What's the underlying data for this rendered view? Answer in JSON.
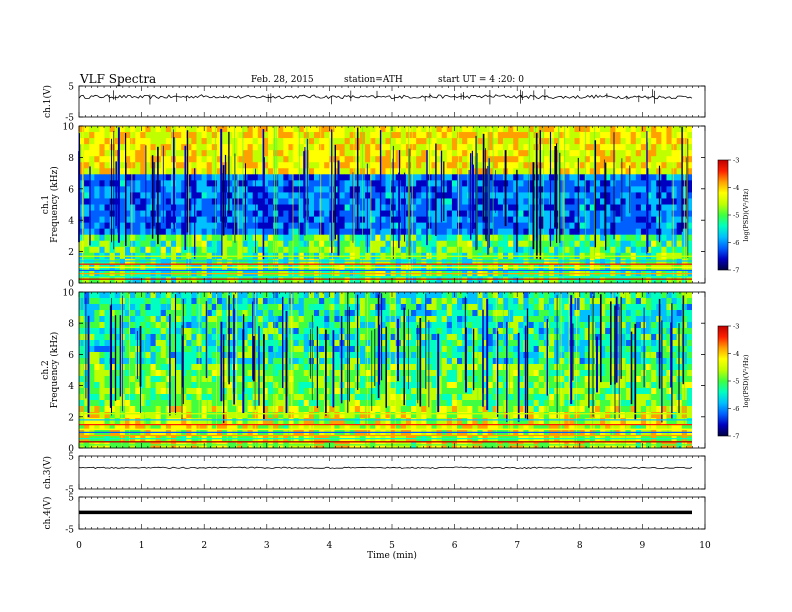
{
  "header": {
    "title": "VLF  Spectra",
    "date": "Feb. 28, 2015",
    "station": "station=ATH",
    "start_ut": "start  UT  =   4  :20: 0"
  },
  "colors": {
    "spectrum_scale": [
      "#000040",
      "#0000c0",
      "#0060ff",
      "#00c0ff",
      "#00ffc0",
      "#40ff40",
      "#c0ff00",
      "#ffff00",
      "#ffa000",
      "#ff2000",
      "#c00000"
    ],
    "trace": "#000000"
  },
  "chart_data": [
    {
      "type": "line",
      "panel": "ch1-waveform",
      "ylabel": "ch.1(V)",
      "ylim": [
        -5,
        5
      ],
      "yticks": [
        "5",
        "-5"
      ],
      "series": [
        {
          "values": [
            1.5,
            1.6,
            1.4,
            1.5,
            1.7,
            1.4,
            1.5,
            1.6,
            1.5,
            1.4,
            1.5,
            1.6,
            1.5,
            1.7,
            1.5,
            1.4,
            1.6,
            1.5,
            1.4,
            1.5
          ]
        }
      ]
    },
    {
      "type": "heatmap",
      "panel": "ch1-spectrogram",
      "ylabel": "ch.1\nFrequency  (kHz)",
      "ylim": [
        0,
        10
      ],
      "yticks": [
        "0",
        "2",
        "4",
        "6",
        "8",
        "10"
      ],
      "colorbar": {
        "label": "log(PSD)(V²/Hz)",
        "range": [
          -7,
          -3
        ],
        "ticks": [
          "-3",
          "-4",
          "-5",
          "-6",
          "-7"
        ]
      }
    },
    {
      "type": "heatmap",
      "panel": "ch2-spectrogram",
      "ylabel": "ch.2\nFrequency  (kHz)",
      "ylim": [
        0,
        10
      ],
      "yticks": [
        "0",
        "2",
        "4",
        "6",
        "8",
        "10"
      ],
      "colorbar": {
        "label": "log(PSD)(V²/Hz)",
        "range": [
          -7,
          -3
        ],
        "ticks": [
          "-3",
          "-4",
          "-5",
          "-6",
          "-7"
        ]
      }
    },
    {
      "type": "line",
      "panel": "ch3-waveform",
      "ylabel": "ch.3(V)",
      "ylim": [
        -5,
        5
      ],
      "yticks": [
        "5",
        "-5"
      ],
      "series": [
        {
          "values": [
            1.4,
            1.4,
            1.5,
            1.4,
            1.4,
            1.5,
            1.4,
            1.4,
            1.4,
            1.5,
            1.4,
            1.4,
            1.5,
            1.4,
            1.4,
            1.4,
            1.5,
            1.4,
            1.4,
            1.4
          ]
        }
      ]
    },
    {
      "type": "line",
      "panel": "ch4-waveform",
      "ylabel": "ch.4(V)",
      "ylim": [
        -5,
        5
      ],
      "yticks": [
        "5",
        "-5"
      ],
      "series": [
        {
          "values": [
            0.2,
            0.2,
            0.2,
            0.2,
            0.2,
            0.2,
            0.2,
            0.2,
            0.2,
            0.2,
            0.2,
            0.2,
            0.2,
            0.2,
            0.2,
            0.2,
            0.2,
            0.2,
            0.2,
            0.2
          ]
        }
      ]
    },
    {
      "type": "axis",
      "panel": "time-axis",
      "xlabel": "Time  (min)",
      "xlim": [
        0,
        10
      ],
      "xticks": [
        "0",
        "1",
        "2",
        "3",
        "4",
        "5",
        "6",
        "7",
        "8",
        "9",
        "10"
      ]
    }
  ]
}
